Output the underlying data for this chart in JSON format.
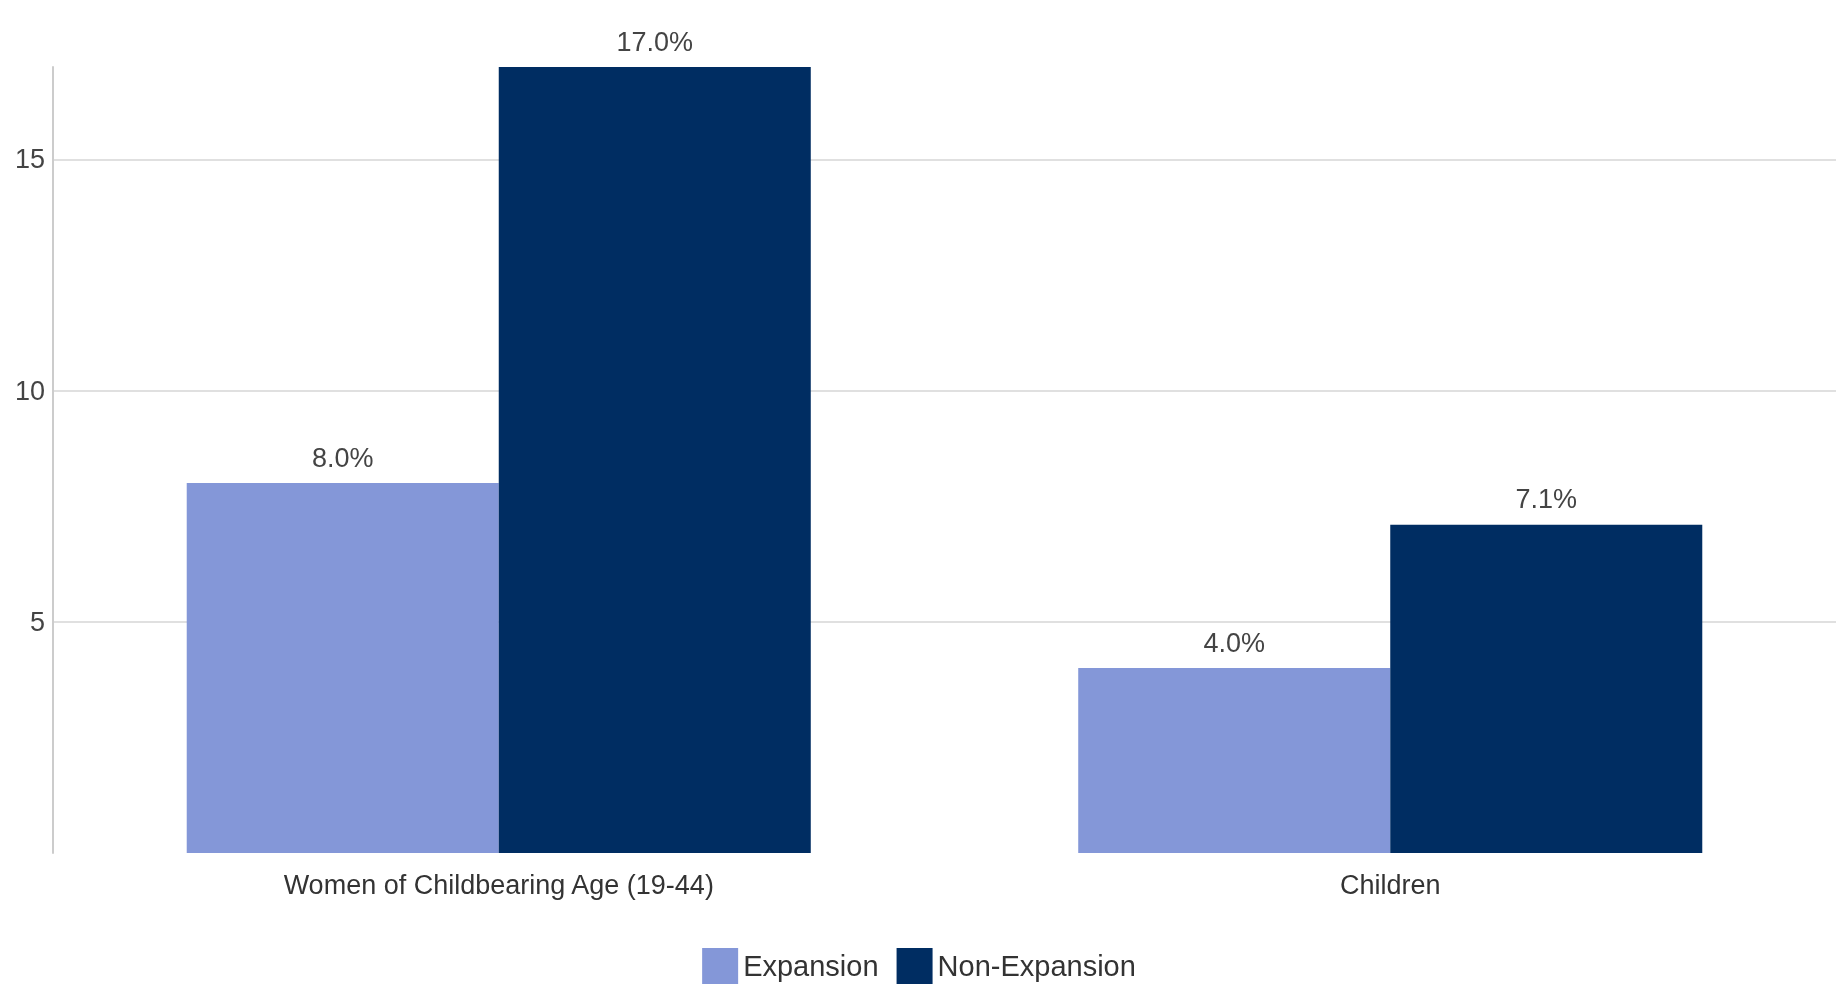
{
  "chart_data": {
    "type": "bar",
    "categories": [
      "Women of Childbearing Age (19-44)",
      "Children"
    ],
    "series": [
      {
        "name": "Expansion",
        "color": "#8497d8",
        "values": [
          8.0,
          4.0
        ],
        "value_labels": [
          "8.0%",
          "4.0%"
        ]
      },
      {
        "name": "Non-Expansion",
        "color": "#002d62",
        "values": [
          17.0,
          7.1
        ],
        "value_labels": [
          "17.0%",
          "7.1%"
        ]
      }
    ],
    "ylim": [
      0,
      17
    ],
    "yticks": [
      5,
      10,
      15
    ],
    "grid": "y",
    "legend": "bottom"
  }
}
